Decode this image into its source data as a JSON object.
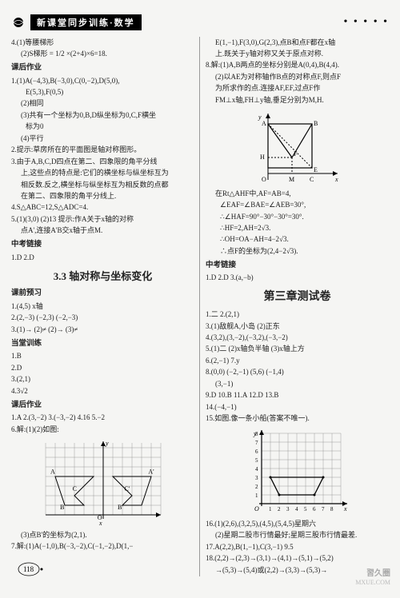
{
  "header": {
    "title": "新课堂同步训练·数学"
  },
  "dots": "• • • • •",
  "page_number": "118",
  "watermark": "習久圈",
  "watermark_sub": "MXUE.COM",
  "left": {
    "l1": "4.(1)等腰梯形",
    "l2": "(2)S梯形 = 1/2 ×(2+4)×6=18.",
    "sec1": "课后作业",
    "l3": "1.(1)A(−4,3),B(−3,0),C(0,−2),D(5,0),",
    "l4": "E(5,3),F(0,5)",
    "l5": "(2)相同",
    "l6": "(3)共有一个坐标为0,B,D纵坐标为0,C,F横坐",
    "l7": "标为0",
    "l8": "(4)平行",
    "l9": "2.提示:草房所在的平面图是轴对称图形。",
    "l10": "3.由于A,B,C,D四点在第二、四象限的角平分线",
    "l11": "上,这些点的特点是:它们的横坐标与纵坐标互为",
    "l12": "相反数.反之,横坐标与纵坐标互为相反数的点都",
    "l13": "在第二、四象限的角平分线上.",
    "l14": "4.S△ABC=12,S△ADC=4.",
    "l15": "5.(1)(3,0) (2)13 提示:作A关于x轴的对称",
    "l16": "点A',连接A'B交x轴于点M.",
    "sec2": "中考链接",
    "l17": "1.D 2.D",
    "unit": "3.3 轴对称与坐标变化",
    "sec3": "课前预习",
    "l18": "1.(4,5) x轴",
    "l19": "2.(2,−3) (−2,3) (−2,−3)",
    "l20": "3.(1)→ (2)≠ (2)→ (3)≠",
    "sec4": "当堂训练",
    "l21": "1.B",
    "l22": "2.D",
    "l23": "3.(2,1)",
    "l24": "4.3√2",
    "sec5": "课后作业",
    "l25": "1.A 2.(3,−2) 3.(−3,−2) 4.16 5.−2",
    "l26": "6.解:(1)(2)如图:",
    "fig1": {
      "grid_color": "#888",
      "bg": "#f5f5f3",
      "pts_left": [
        [
          -5,
          4
        ],
        [
          -4,
          1
        ],
        [
          -2,
          1
        ],
        [
          -3,
          2
        ],
        [
          -1,
          4
        ]
      ],
      "pts_right": [
        [
          5,
          4
        ],
        [
          4,
          1
        ],
        [
          2,
          1
        ],
        [
          3,
          2
        ],
        [
          1,
          4
        ]
      ],
      "labels": {
        "A": "A",
        "Ap": "A'",
        "B": "B",
        "Bp": "B'",
        "C": "C",
        "Cp": "C'",
        "O": "O"
      }
    },
    "l27": "(3)点B'的坐标为(2,1).",
    "l28": "7.解:(1)A(−1,0),B(−3,−2),C(−1,−2),D(1,−"
  },
  "right": {
    "l1": "E(1,−1),F(3,0),G(2,3),点B和点F都在x轴",
    "l2": "上.既关于y轴对称又关于原点对称.",
    "l3": "8.解:(1)A,B两点的坐标分别是A(0,4),B(4,4).",
    "l4": "(2)以AE为对称轴作B点的对称点F,则点F",
    "l5": "为所求作的点.连接AF,EF,过点F作",
    "l6": "FM⊥x轴,FH⊥y轴,垂足分别为M,H.",
    "fig2": {
      "stroke": "#000",
      "bg": "#f5f5f3"
    },
    "l7": "在Rt△AHF中,AF=AB=4,",
    "l8": "∠EAF=∠BAE=∠AEB=30°,",
    "l9": "∴∠HAF=90°−30°−30°=30°.",
    "l10": "∴HF=2,AH=2√3.",
    "l11": "∴OH=OA−AH=4−2√3.",
    "l12": "∴点F的坐标为(2,4−2√3).",
    "sec1": "中考链接",
    "l13": "1.D 2.D 3.(a,−b)",
    "chapter": "第三章测试卷",
    "l14": "1.二 2.(2,1)",
    "l15": "3.(1)敌舰A,小岛 (2)正东",
    "l16": "4.(3,2),(3,−2),(−3,2),(−3,−2)",
    "l17": "5.(1)二 (2)x轴负半轴 (3)x轴上方",
    "l18": "6.(2,−1) 7.y",
    "l19": "8.(0,0) (−2,−1) (5,6) (−1,4)",
    "l20": "(3,−1)",
    "l21": "9.D 10.B 11.A 12.D 13.B",
    "l22": "14.(−4,−1)",
    "l23": "15.如图.像一条小船(答案不唯一).",
    "fig3": {
      "grid_color": "#888",
      "bg": "#f5f5f3",
      "x_ticks": [
        1,
        2,
        3,
        4,
        5,
        6,
        7,
        8
      ],
      "y_ticks": [
        1,
        2,
        3,
        4,
        5,
        6,
        7,
        8
      ],
      "boat": [
        [
          1,
          3
        ],
        [
          2,
          1
        ],
        [
          6,
          1
        ],
        [
          7,
          3
        ]
      ]
    },
    "l24": "16.(1)(2,6),(3,2,5),(4,5),(5,4,5)星期六",
    "l25": "(2)星期二股市行情最好;星期三股市行情最差.",
    "l26": "17.A(2,2),B(1,−1),C(3,−1) 9.5",
    "l27": "18.(2,2)→(2,3)→(3,1)→(4,1)→(5,1)→(5,2)",
    "l28": "→(5,3)→(5,4)或(2,2)→(3,3)→(5,3)→"
  }
}
